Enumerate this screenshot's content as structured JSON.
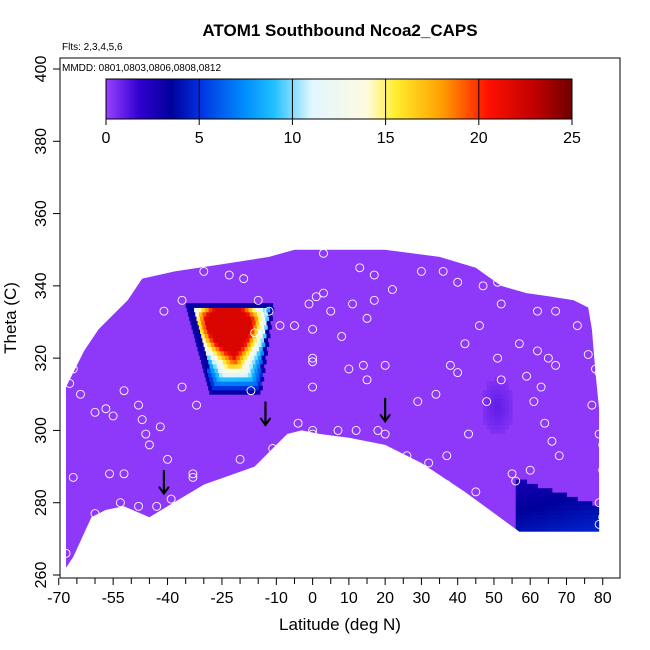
{
  "chart_data": {
    "type": "heatmap",
    "title": "ATOM1 Southbound Ncoa2_CAPS",
    "flights_label": "Flts: 2,3,4,5,6",
    "dates_label": "MMDD: 0801,0803,0806,0808,0812",
    "xlabel": "Latitude (deg N)",
    "ylabel": "Theta (C)",
    "xlim": [
      -70,
      85
    ],
    "ylim": [
      260,
      405
    ],
    "x_ticks": [
      -70,
      -55,
      -40,
      -25,
      -10,
      0,
      10,
      20,
      30,
      40,
      50,
      60,
      70,
      80
    ],
    "x_ticks_minor": [
      -65,
      -60,
      -50,
      -45,
      -35,
      -30,
      -20,
      -15,
      -5,
      5,
      15,
      25,
      35,
      45,
      55,
      65,
      75,
      85
    ],
    "y_ticks": [
      260,
      280,
      300,
      320,
      340,
      360,
      380,
      400
    ],
    "colorbar": {
      "min": 0,
      "max": 25,
      "ticks": [
        0,
        5,
        10,
        15,
        20,
        25
      ],
      "stops": [
        {
          "v": 0,
          "c": "#9a40ff"
        },
        {
          "v": 1.8,
          "c": "#3000d0"
        },
        {
          "v": 3.5,
          "c": "#00009a"
        },
        {
          "v": 5,
          "c": "#0030e0"
        },
        {
          "v": 7.5,
          "c": "#0090ff"
        },
        {
          "v": 9,
          "c": "#20c0ff"
        },
        {
          "v": 11,
          "c": "#e0f6ff"
        },
        {
          "v": 14,
          "c": "#fffbe0"
        },
        {
          "v": 15.5,
          "c": "#ffee30"
        },
        {
          "v": 18,
          "c": "#ffa000"
        },
        {
          "v": 20.5,
          "c": "#ff1000"
        },
        {
          "v": 23,
          "c": "#c00000"
        },
        {
          "v": 25,
          "c": "#700000"
        }
      ]
    },
    "domain_boundary": [
      [
        -68,
        262
      ],
      [
        -68,
        312
      ],
      [
        -63,
        322
      ],
      [
        -59,
        328
      ],
      [
        -55,
        332
      ],
      [
        -51,
        336
      ],
      [
        -47,
        342
      ],
      [
        -38,
        344
      ],
      [
        -25,
        346
      ],
      [
        -12,
        348
      ],
      [
        -5,
        350
      ],
      [
        5,
        350
      ],
      [
        20,
        350
      ],
      [
        35,
        348
      ],
      [
        45,
        345
      ],
      [
        52,
        340
      ],
      [
        59,
        338
      ],
      [
        66,
        337
      ],
      [
        72,
        336
      ],
      [
        76,
        334
      ],
      [
        77,
        328
      ],
      [
        78,
        316
      ],
      [
        79,
        306
      ],
      [
        79,
        272
      ],
      [
        57,
        272
      ],
      [
        42,
        283
      ],
      [
        30,
        291
      ],
      [
        20,
        296
      ],
      [
        10,
        298
      ],
      [
        2,
        299
      ],
      [
        -3,
        300
      ],
      [
        -7,
        299
      ],
      [
        -16,
        290
      ],
      [
        -30,
        285
      ],
      [
        -45,
        276
      ],
      [
        -52,
        279
      ],
      [
        -57,
        278
      ],
      [
        -61,
        276
      ],
      [
        -66,
        265
      ],
      [
        -68,
        262
      ]
    ],
    "background_value": 0.2,
    "features": [
      {
        "name": "peak",
        "lat": [
          -34,
          -5
        ],
        "theta": [
          310,
          334
        ],
        "top_width": 24,
        "bottom_width": 14,
        "max": 22,
        "center": [
          -24,
          330
        ]
      },
      {
        "name": "low_patch_south",
        "lat": [
          56,
          79
        ],
        "theta": [
          272,
          286
        ],
        "value": 4
      },
      {
        "name": "faint_patch",
        "lat": [
          46,
          55
        ],
        "theta": [
          298,
          314
        ],
        "value": 1
      }
    ],
    "sample_points": [
      [
        -68,
        266
      ],
      [
        -66,
        287
      ],
      [
        -67,
        313
      ],
      [
        -66,
        317
      ],
      [
        -64,
        310
      ],
      [
        -60,
        305
      ],
      [
        -57,
        306
      ],
      [
        -55,
        304
      ],
      [
        -52,
        311
      ],
      [
        -48,
        307
      ],
      [
        -47,
        303
      ],
      [
        -46,
        299
      ],
      [
        -45,
        296
      ],
      [
        -42,
        301
      ],
      [
        -40,
        292
      ],
      [
        -52,
        288
      ],
      [
        -56,
        288
      ],
      [
        -60,
        277
      ],
      [
        -53,
        280
      ],
      [
        -48,
        279
      ],
      [
        -43,
        279
      ],
      [
        -39,
        281
      ],
      [
        -33,
        287
      ],
      [
        -33,
        288
      ],
      [
        -32,
        307
      ],
      [
        -36,
        312
      ],
      [
        -41,
        333
      ],
      [
        -36,
        336
      ],
      [
        -30,
        344
      ],
      [
        -23,
        343
      ],
      [
        -19,
        342
      ],
      [
        -15,
        336
      ],
      [
        -12,
        333
      ],
      [
        -16,
        327
      ],
      [
        -9,
        329
      ],
      [
        -5,
        329
      ],
      [
        -1,
        335
      ],
      [
        1,
        337
      ],
      [
        3,
        338
      ],
      [
        3,
        349
      ],
      [
        0,
        328
      ],
      [
        0,
        320
      ],
      [
        0,
        319
      ],
      [
        0,
        312
      ],
      [
        0,
        300
      ],
      [
        0,
        299
      ],
      [
        -4,
        302
      ],
      [
        -11,
        295
      ],
      [
        -20,
        292
      ],
      [
        -17,
        311
      ],
      [
        7,
        300
      ],
      [
        12,
        300
      ],
      [
        18,
        300
      ],
      [
        20,
        299
      ],
      [
        17,
        336
      ],
      [
        13,
        345
      ],
      [
        15,
        331
      ],
      [
        11,
        335
      ],
      [
        5,
        333
      ],
      [
        8,
        326
      ],
      [
        10,
        317
      ],
      [
        15,
        314
      ],
      [
        14,
        318
      ],
      [
        20,
        318
      ],
      [
        17,
        343
      ],
      [
        22,
        339
      ],
      [
        30,
        344
      ],
      [
        36,
        344
      ],
      [
        40,
        341
      ],
      [
        47,
        340
      ],
      [
        51,
        341
      ],
      [
        52,
        335
      ],
      [
        46,
        329
      ],
      [
        42,
        324
      ],
      [
        38,
        318
      ],
      [
        40,
        316
      ],
      [
        34,
        310
      ],
      [
        29,
        308
      ],
      [
        26,
        293
      ],
      [
        32,
        291
      ],
      [
        37,
        293
      ],
      [
        43,
        299
      ],
      [
        48,
        308
      ],
      [
        52,
        314
      ],
      [
        51,
        320
      ],
      [
        57,
        324
      ],
      [
        62,
        322
      ],
      [
        65,
        320
      ],
      [
        67,
        318
      ],
      [
        63,
        312
      ],
      [
        59,
        315
      ],
      [
        61,
        308
      ],
      [
        64,
        302
      ],
      [
        66,
        297
      ],
      [
        68,
        293
      ],
      [
        60,
        289
      ],
      [
        56,
        286
      ],
      [
        62,
        333
      ],
      [
        67,
        333
      ],
      [
        73,
        329
      ],
      [
        76,
        321
      ],
      [
        78,
        317
      ],
      [
        79,
        316
      ],
      [
        77,
        307
      ],
      [
        79,
        299
      ],
      [
        80,
        296
      ],
      [
        80,
        289
      ],
      [
        79,
        280
      ],
      [
        80,
        276
      ],
      [
        79,
        274
      ],
      [
        55,
        288
      ],
      [
        45,
        283
      ],
      [
        43,
        279
      ],
      [
        37,
        285
      ],
      [
        33,
        284
      ],
      [
        28,
        284
      ]
    ],
    "arrows_lat": [
      -41,
      -13,
      20
    ],
    "arrows_theta": [
      283,
      302,
      303
    ]
  }
}
